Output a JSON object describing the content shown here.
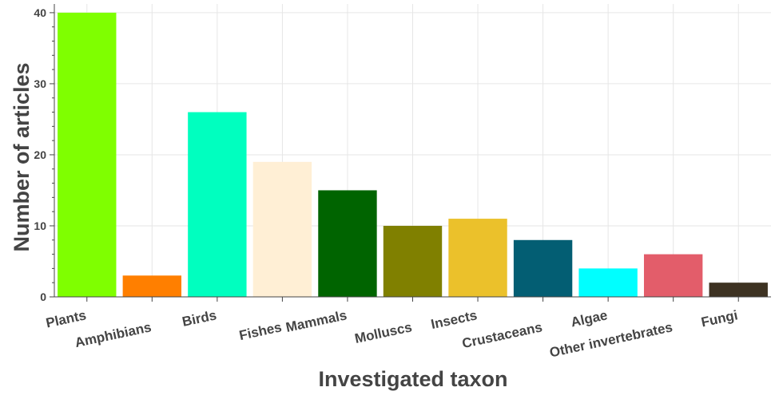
{
  "chart_data": {
    "type": "bar",
    "xlabel": "Investigated taxon",
    "ylabel": "Number of articles",
    "ylim": [
      0,
      41
    ],
    "yticks": [
      0,
      10,
      20,
      30,
      40
    ],
    "grid": true,
    "categories": [
      "Plants",
      "Amphibians",
      "Birds",
      "Fishes",
      "Mammals",
      "Molluscs",
      "Insects",
      "Crustaceans",
      "Algae",
      "Other invertebrates",
      "Fungi"
    ],
    "values": [
      40,
      3,
      26,
      19,
      15,
      10,
      11,
      8,
      4,
      6,
      2
    ],
    "colors": [
      "#7fff00",
      "#ff7f00",
      "#00ffbf",
      "#ffefd5",
      "#006400",
      "#808000",
      "#ebc12b",
      "#035e73",
      "#00ffff",
      "#e35d6a",
      "#3d3222"
    ]
  }
}
